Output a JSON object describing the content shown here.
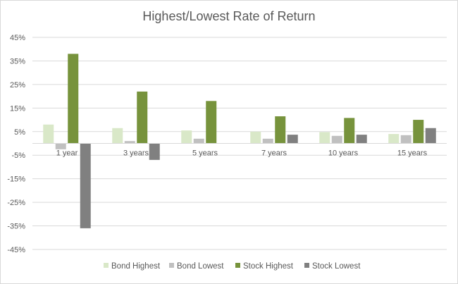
{
  "chart_data": {
    "type": "bar",
    "title": "Highest/Lowest Rate of Return",
    "categories": [
      "1 year",
      "3 years",
      "5 years",
      "7 years",
      "10 years",
      "15 years"
    ],
    "series": [
      {
        "name": "Bond Highest",
        "color": "#d9e8c8",
        "values": [
          8,
          6.5,
          5.5,
          5,
          4.8,
          4
        ]
      },
      {
        "name": "Bond Lowest",
        "color": "#c0c0c0",
        "values": [
          -2.5,
          1,
          2,
          2,
          3.2,
          3.5
        ]
      },
      {
        "name": "Stock Highest",
        "color": "#77933c",
        "values": [
          38,
          22,
          18,
          11.5,
          10.8,
          10
        ]
      },
      {
        "name": "Stock Lowest",
        "color": "#808080",
        "values": [
          -36,
          -7,
          0,
          3.7,
          3.7,
          6.5
        ]
      }
    ],
    "y_ticks": [
      "45%",
      "35%",
      "25%",
      "15%",
      "5%",
      "-5%",
      "-15%",
      "-25%",
      "-35%",
      "-45%"
    ],
    "ylim": [
      -45,
      45
    ],
    "grid": true,
    "legend_position": "bottom"
  }
}
